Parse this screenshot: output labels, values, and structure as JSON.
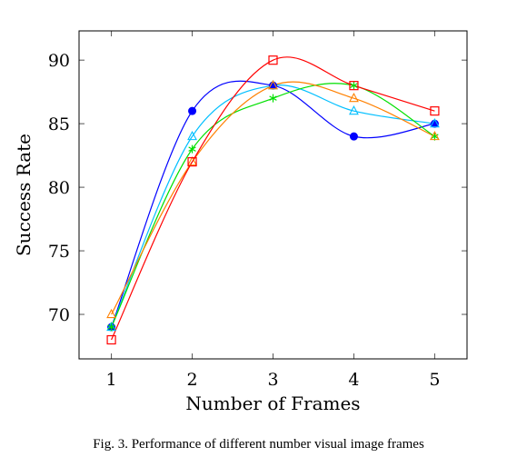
{
  "chart_data": {
    "type": "line",
    "xlabel": "Number of Frames",
    "ylabel": "Success Rate",
    "x": [
      1,
      2,
      3,
      4,
      5
    ],
    "xticks": [
      "1",
      "2",
      "3",
      "4",
      "5"
    ],
    "yticks": [
      "70",
      "75",
      "80",
      "85",
      "90"
    ],
    "ytick_values": [
      70,
      75,
      80,
      85,
      90
    ],
    "xlim": [
      0.6,
      5.4
    ],
    "ylim": [
      66.5,
      92.3
    ],
    "grid": false,
    "series": [
      {
        "color": "#0000ff",
        "marker": "circle",
        "values": [
          69,
          86,
          88,
          84,
          85
        ]
      },
      {
        "color": "#00bfff",
        "marker": "triangle",
        "values": [
          69,
          84,
          88,
          86,
          85
        ]
      },
      {
        "color": "#00e000",
        "marker": "star",
        "values": [
          69,
          83,
          87,
          88,
          84
        ]
      },
      {
        "color": "#ff8000",
        "marker": "triangle",
        "values": [
          70,
          82,
          88,
          87,
          84
        ]
      },
      {
        "color": "#ff0000",
        "marker": "square",
        "values": [
          68,
          82,
          90,
          88,
          86
        ]
      }
    ]
  },
  "caption": "Fig. 3.  Performance of different number visual image frames"
}
